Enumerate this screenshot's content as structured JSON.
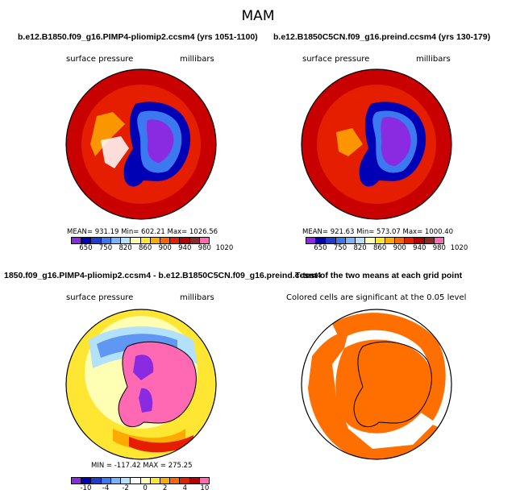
{
  "season": "MAM",
  "panels": [
    {
      "title": "b.e12.B1850.f09_g16.PIMP4-pliomip2.ccsm4 (yrs 1051-1100)",
      "variable": "surface pressure",
      "units": "millibars",
      "stats": "MEAN= 931.19   Min= 602.21   Max= 1026.56"
    },
    {
      "title": "b.e12.B1850C5CN.f09_g16.preind.ccsm4 (yrs 130-179)",
      "variable": "surface pressure",
      "units": "millibars",
      "stats": "MEAN= 921.63   Min= 573.07   Max= 1000.40"
    },
    {
      "title": "1850.f09_g16.PIMP4-pliomip2.ccsm4 - b.e12.B1850C5CN.f09_g16.preind.ccsm4",
      "variable": "surface pressure",
      "units": "millibars",
      "stats": "MIN = -117.42  MAX = 275.25"
    },
    {
      "title": "T-test of the two means at each grid point",
      "note": "Colored cells are significant at the 0.05 level"
    }
  ],
  "colorbar_abs": {
    "colors": [
      "#8a2be2",
      "#0000b4",
      "#1e3cd2",
      "#3c78f0",
      "#78b4fa",
      "#b4e1fa",
      "#ffffb4",
      "#ffe632",
      "#ffaa00",
      "#ff6400",
      "#e61e00",
      "#b40000",
      "#8c2828",
      "#ff69b4"
    ],
    "labels": [
      "650",
      "750",
      "820",
      "860",
      "900",
      "940",
      "980",
      "1020"
    ]
  },
  "colorbar_diff": {
    "colors": [
      "#8a2be2",
      "#0000b4",
      "#1e3cd2",
      "#3c78f0",
      "#78b4fa",
      "#b4e1fa",
      "#ffffff",
      "#ffffb4",
      "#ffe632",
      "#ffaa00",
      "#ff6400",
      "#e61e00",
      "#b40000",
      "#ff69b4"
    ],
    "labels": [
      "-10",
      "-4",
      "-2",
      "0",
      "2",
      "4",
      "10"
    ]
  },
  "map_colors": {
    "ocean_high": "#e61e00",
    "ttest": "#ff6f00",
    "antarctic_low": "#8a2be2",
    "diff_positive": "#ff69b4"
  }
}
